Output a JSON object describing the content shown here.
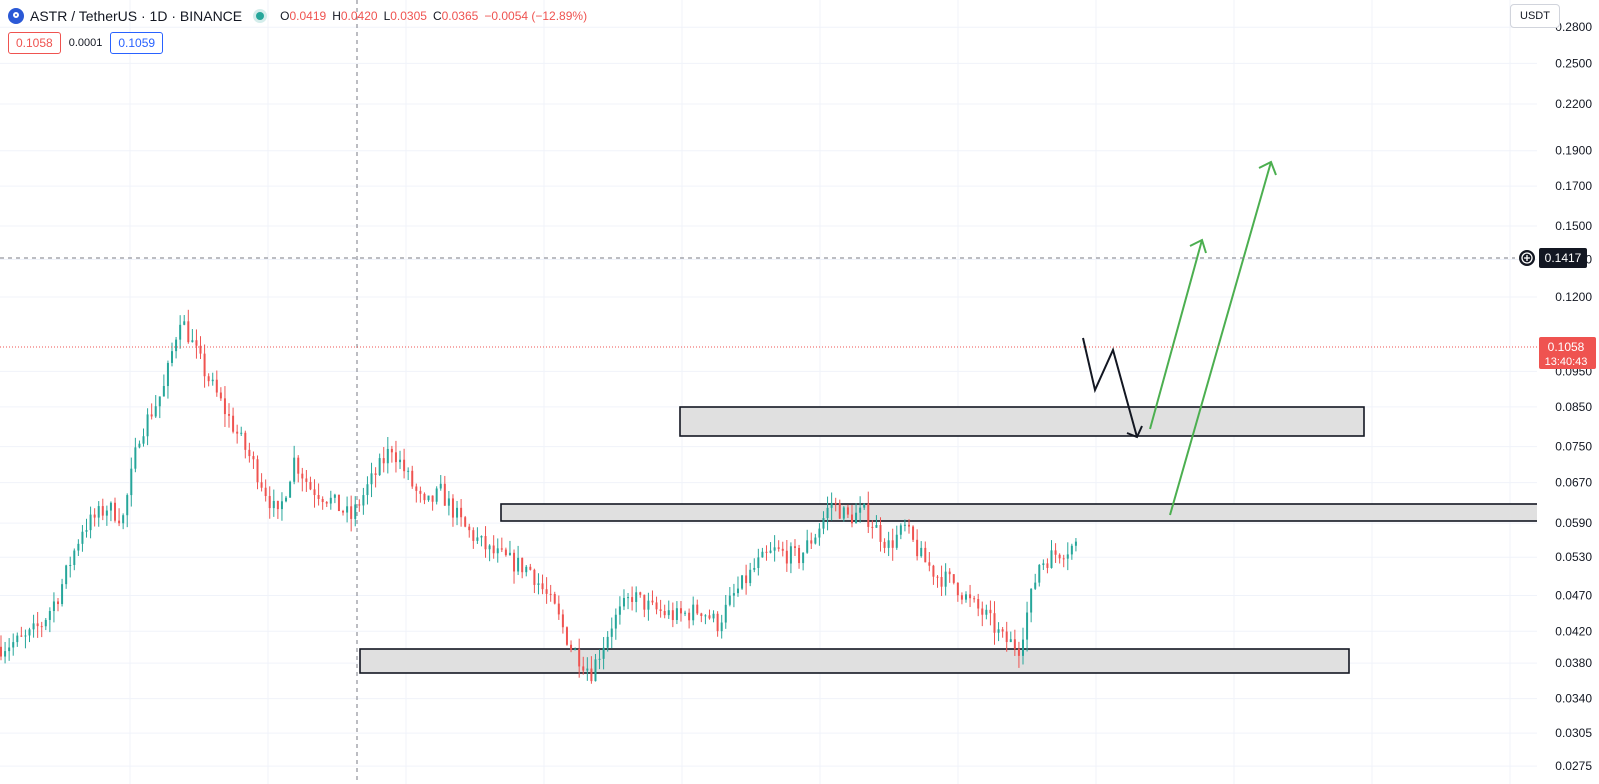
{
  "header": {
    "symbol": "ASTR / TetherUS · 1D · BINANCE",
    "ohlc": [
      {
        "k": "O",
        "v": "0.0419"
      },
      {
        "k": "H",
        "v": "0.0420"
      },
      {
        "k": "L",
        "v": "0.0305"
      },
      {
        "k": "C",
        "v": "0.0365"
      }
    ],
    "change": "−0.0054 (−12.89%)",
    "sell_price": "0.1058",
    "spread": "0.0001",
    "buy_price": "0.1059"
  },
  "currency_button": "USDT",
  "colors": {
    "up": "#26a69a",
    "down": "#ef5350",
    "zone_fill": "#e0e0e0",
    "projection_black": "#131722",
    "projection_green": "#4caf50",
    "last_price_badge": "#ef5350",
    "crosshair_badge": "#131722"
  },
  "chart_data": {
    "type": "candlestick",
    "y_scale": "log",
    "ylim": [
      0.026,
      0.305
    ],
    "y_ticks": [
      "0.2800",
      "0.2500",
      "0.2200",
      "0.1900",
      "0.1700",
      "0.1500",
      "0.1350",
      "0.1200",
      "0.0950",
      "0.0850",
      "0.0750",
      "0.0670",
      "0.0590",
      "0.0530",
      "0.0470",
      "0.0420",
      "0.0380",
      "0.0340",
      "0.0305",
      "0.0275"
    ],
    "bar_count": 265,
    "price_path": [
      {
        "i": 0,
        "v": 0.04
      },
      {
        "i": 6,
        "v": 0.041
      },
      {
        "i": 10,
        "v": 0.043
      },
      {
        "i": 14,
        "v": 0.047
      },
      {
        "i": 20,
        "v": 0.058
      },
      {
        "i": 26,
        "v": 0.062
      },
      {
        "i": 30,
        "v": 0.06
      },
      {
        "i": 34,
        "v": 0.078
      },
      {
        "i": 40,
        "v": 0.09
      },
      {
        "i": 44,
        "v": 0.113
      },
      {
        "i": 50,
        "v": 0.095
      },
      {
        "i": 56,
        "v": 0.082
      },
      {
        "i": 62,
        "v": 0.071
      },
      {
        "i": 68,
        "v": 0.06
      },
      {
        "i": 72,
        "v": 0.072
      },
      {
        "i": 76,
        "v": 0.066
      },
      {
        "i": 80,
        "v": 0.064
      },
      {
        "i": 86,
        "v": 0.06
      },
      {
        "i": 90,
        "v": 0.066
      },
      {
        "i": 96,
        "v": 0.075
      },
      {
        "i": 100,
        "v": 0.068
      },
      {
        "i": 104,
        "v": 0.062
      },
      {
        "i": 108,
        "v": 0.065
      },
      {
        "i": 114,
        "v": 0.058
      },
      {
        "i": 120,
        "v": 0.054
      },
      {
        "i": 126,
        "v": 0.052
      },
      {
        "i": 130,
        "v": 0.051
      },
      {
        "i": 136,
        "v": 0.045
      },
      {
        "i": 140,
        "v": 0.04
      },
      {
        "i": 145,
        "v": 0.037
      },
      {
        "i": 150,
        "v": 0.043
      },
      {
        "i": 155,
        "v": 0.047
      },
      {
        "i": 160,
        "v": 0.045
      },
      {
        "i": 166,
        "v": 0.044
      },
      {
        "i": 172,
        "v": 0.045
      },
      {
        "i": 176,
        "v": 0.043
      },
      {
        "i": 180,
        "v": 0.047
      },
      {
        "i": 186,
        "v": 0.052
      },
      {
        "i": 190,
        "v": 0.054
      },
      {
        "i": 196,
        "v": 0.053
      },
      {
        "i": 200,
        "v": 0.057
      },
      {
        "i": 204,
        "v": 0.063
      },
      {
        "i": 208,
        "v": 0.06
      },
      {
        "i": 212,
        "v": 0.061
      },
      {
        "i": 218,
        "v": 0.055
      },
      {
        "i": 222,
        "v": 0.058
      },
      {
        "i": 226,
        "v": 0.053
      },
      {
        "i": 230,
        "v": 0.05
      },
      {
        "i": 234,
        "v": 0.049
      },
      {
        "i": 238,
        "v": 0.046
      },
      {
        "i": 242,
        "v": 0.044
      },
      {
        "i": 246,
        "v": 0.041
      },
      {
        "i": 250,
        "v": 0.04
      },
      {
        "i": 255,
        "v": 0.052
      },
      {
        "i": 260,
        "v": 0.054
      },
      {
        "i": 264,
        "v": 0.055
      }
    ]
  }
}
